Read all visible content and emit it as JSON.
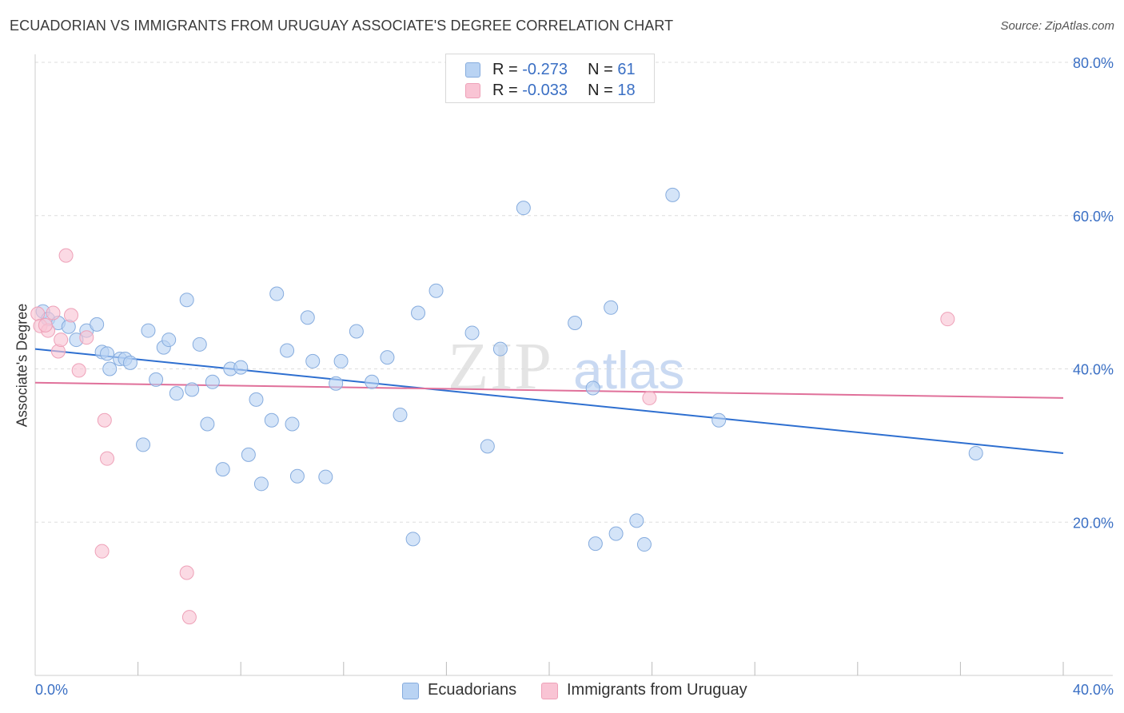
{
  "title": "ECUADORIAN VS IMMIGRANTS FROM URUGUAY ASSOCIATE'S DEGREE CORRELATION CHART",
  "source": "Source: ZipAtlas.com",
  "watermark": {
    "zip": "ZIP",
    "atlas": "atlas"
  },
  "legend_top": [
    {
      "r_label": "R = ",
      "r_value": "-0.273",
      "n_label": "N = ",
      "n_value": "61"
    },
    {
      "r_label": "R = ",
      "r_value": "-0.033",
      "n_label": "N = ",
      "n_value": "18"
    }
  ],
  "legend_bottom": [
    "Ecuadorians",
    "Immigrants from Uruguay"
  ],
  "colors": {
    "series1_fill": "#b9d3f3",
    "series1_stroke": "#86acde",
    "series1_line": "#2e6fd0",
    "series2_fill": "#f9c4d4",
    "series2_stroke": "#eea1b8",
    "series2_line": "#e0709a",
    "grid": "#dddddd",
    "axis_label": "#3a6fc4"
  },
  "chart_data": {
    "type": "scatter",
    "title": "ECUADORIAN VS IMMIGRANTS FROM URUGUAY ASSOCIATE'S DEGREE CORRELATION CHART",
    "xlabel": "",
    "ylabel": "Associate's Degree",
    "xlim": [
      0,
      40
    ],
    "ylim": [
      0,
      80
    ],
    "x_tick_labels": [
      "0.0%",
      "40.0%"
    ],
    "y_ticks": [
      20,
      40,
      60,
      80
    ],
    "y_tick_labels": [
      "20.0%",
      "40.0%",
      "60.0%",
      "80.0%"
    ],
    "grid": true,
    "series": [
      {
        "name": "Ecuadorians",
        "r": -0.273,
        "n": 61,
        "trend": {
          "x": [
            0,
            40
          ],
          "y": [
            42.6,
            29.0
          ]
        },
        "points": [
          [
            0.3,
            47.5
          ],
          [
            0.5,
            46.5
          ],
          [
            0.9,
            46.0
          ],
          [
            1.3,
            45.5
          ],
          [
            1.6,
            43.8
          ],
          [
            2.0,
            45.0
          ],
          [
            2.4,
            45.8
          ],
          [
            2.6,
            42.2
          ],
          [
            2.8,
            42.0
          ],
          [
            2.9,
            40.0
          ],
          [
            3.3,
            41.3
          ],
          [
            3.5,
            41.3
          ],
          [
            3.7,
            40.8
          ],
          [
            4.2,
            30.1
          ],
          [
            4.4,
            45.0
          ],
          [
            4.7,
            38.6
          ],
          [
            5.0,
            42.8
          ],
          [
            5.2,
            43.8
          ],
          [
            5.5,
            36.8
          ],
          [
            5.9,
            49.0
          ],
          [
            6.1,
            37.3
          ],
          [
            6.4,
            43.2
          ],
          [
            6.7,
            32.8
          ],
          [
            6.9,
            38.3
          ],
          [
            7.3,
            26.9
          ],
          [
            7.6,
            40.0
          ],
          [
            8.0,
            40.2
          ],
          [
            8.3,
            28.8
          ],
          [
            8.6,
            36.0
          ],
          [
            8.8,
            25.0
          ],
          [
            9.2,
            33.3
          ],
          [
            9.4,
            49.8
          ],
          [
            9.8,
            42.4
          ],
          [
            10.0,
            32.8
          ],
          [
            10.2,
            26.0
          ],
          [
            10.6,
            46.7
          ],
          [
            10.8,
            41.0
          ],
          [
            11.3,
            25.9
          ],
          [
            11.7,
            38.1
          ],
          [
            11.9,
            41.0
          ],
          [
            12.5,
            44.9
          ],
          [
            13.1,
            38.3
          ],
          [
            13.7,
            41.5
          ],
          [
            14.2,
            34.0
          ],
          [
            14.7,
            17.8
          ],
          [
            14.9,
            47.3
          ],
          [
            15.6,
            50.2
          ],
          [
            17.0,
            44.7
          ],
          [
            17.6,
            29.9
          ],
          [
            18.1,
            42.6
          ],
          [
            19.0,
            61.0
          ],
          [
            21.0,
            46.0
          ],
          [
            21.7,
            37.5
          ],
          [
            21.8,
            17.2
          ],
          [
            22.4,
            48.0
          ],
          [
            22.6,
            18.5
          ],
          [
            23.4,
            20.2
          ],
          [
            23.7,
            17.1
          ],
          [
            24.8,
            62.7
          ],
          [
            26.6,
            33.3
          ],
          [
            36.6,
            29.0
          ]
        ]
      },
      {
        "name": "Immigrants from Uruguay",
        "r": -0.033,
        "n": 18,
        "trend": {
          "x": [
            0,
            40
          ],
          "y": [
            38.2,
            36.2
          ]
        },
        "points": [
          [
            0.1,
            47.2
          ],
          [
            0.2,
            45.6
          ],
          [
            0.5,
            45.0
          ],
          [
            0.7,
            47.3
          ],
          [
            0.9,
            42.3
          ],
          [
            1.0,
            43.8
          ],
          [
            1.2,
            54.8
          ],
          [
            1.4,
            47.0
          ],
          [
            1.7,
            39.8
          ],
          [
            2.0,
            44.1
          ],
          [
            2.6,
            16.2
          ],
          [
            2.7,
            33.3
          ],
          [
            2.8,
            28.3
          ],
          [
            5.9,
            13.4
          ],
          [
            6.0,
            7.6
          ],
          [
            23.9,
            36.2
          ],
          [
            35.5,
            46.5
          ],
          [
            0.4,
            45.7
          ]
        ]
      }
    ]
  }
}
